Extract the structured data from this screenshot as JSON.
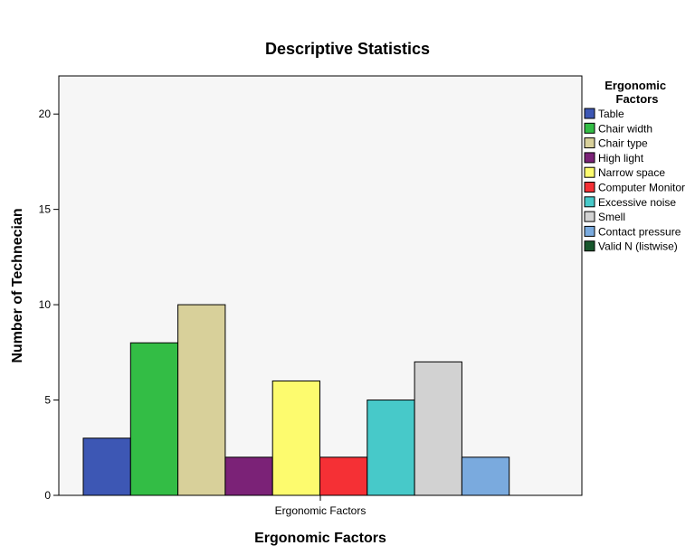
{
  "chart_data": {
    "type": "bar",
    "title": "Descriptive Statistics",
    "xlabel": "Ergonomic Factors",
    "ylabel": "Number of Technecian",
    "categories": [
      "Ergonomic Factors"
    ],
    "ylim": [
      0,
      22
    ],
    "yticks": [
      0,
      5,
      10,
      15,
      20
    ],
    "grid": false,
    "legend_title": "Ergonomic Factors",
    "legend_position": "right",
    "plot_background": "#f6f6f6",
    "series": [
      {
        "name": "Table",
        "value": 3,
        "color": "#3d57b4"
      },
      {
        "name": "Chair width",
        "value": 8,
        "color": "#33bd45"
      },
      {
        "name": "Chair type",
        "value": 10,
        "color": "#d8d09a"
      },
      {
        "name": "High light",
        "value": 2,
        "color": "#7b2277"
      },
      {
        "name": "Narrow space",
        "value": 6,
        "color": "#fdfb6e"
      },
      {
        "name": "Computer Monitor",
        "value": 2,
        "color": "#f53035"
      },
      {
        "name": "Excessive noise",
        "value": 5,
        "color": "#47c9c9"
      },
      {
        "name": "Smell",
        "value": 7,
        "color": "#d2d2d2"
      },
      {
        "name": "Contact pressure",
        "value": 2,
        "color": "#7aaade"
      },
      {
        "name": "Valid N (listwise)",
        "value": null,
        "color": "#17562c"
      }
    ]
  }
}
